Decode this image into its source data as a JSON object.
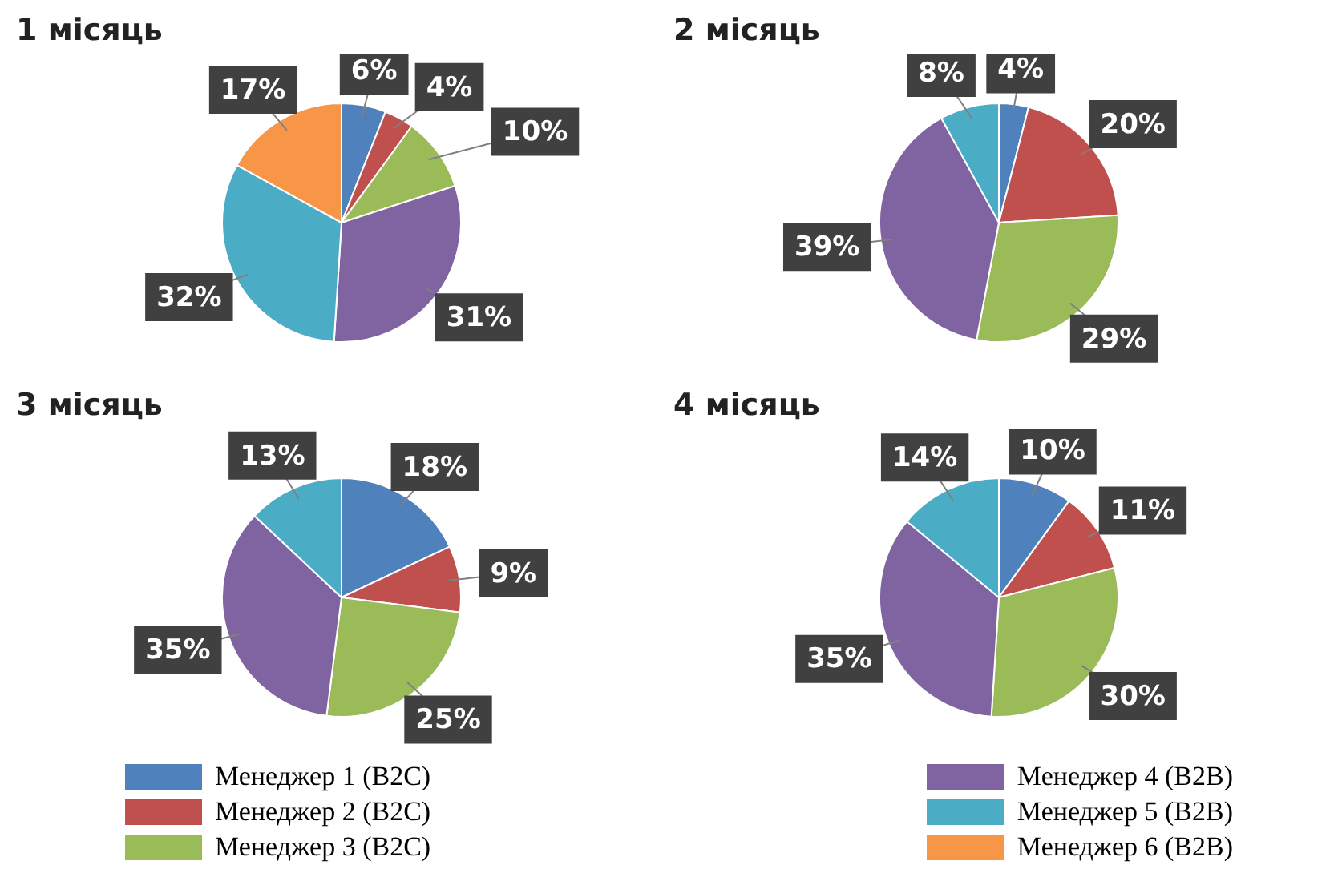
{
  "chart_data": [
    {
      "type": "pie",
      "title": "1 місяць",
      "categories": [
        "Менеджер 1 (B2C)",
        "Менеджер 2 (B2C)",
        "Менеджер 3 (B2C)",
        "Менеджер 4 (B2B)",
        "Менеджер 5 (B2B)",
        "Менеджер 6 (B2B)"
      ],
      "values": [
        6,
        4,
        10,
        31,
        32,
        17
      ],
      "colors": [
        "#4f81bd",
        "#c0504d",
        "#9bbb59",
        "#8064a2",
        "#4bacc6",
        "#f79646"
      ],
      "value_labels": [
        "6%",
        "4%",
        "10%",
        "31%",
        "32%",
        "17%"
      ],
      "legend": "bottom"
    },
    {
      "type": "pie",
      "title": "2 місяць",
      "categories": [
        null,
        null,
        null,
        null,
        null
      ],
      "values": [
        4,
        20,
        29,
        39,
        8
      ],
      "colors": [
        "#4f81bd",
        "#c0504d",
        "#9bbb59",
        "#8064a2",
        "#4bacc6"
      ],
      "value_labels": [
        "4%",
        "20%",
        "29%",
        "39%",
        "8%"
      ]
    },
    {
      "type": "pie",
      "title": "3 місяць",
      "categories": [
        null,
        null,
        null,
        null,
        null
      ],
      "values": [
        18,
        9,
        25,
        35,
        13
      ],
      "colors": [
        "#4f81bd",
        "#c0504d",
        "#9bbb59",
        "#8064a2",
        "#4bacc6"
      ],
      "value_labels": [
        "18%",
        "9%",
        "25%",
        "35%",
        "13%"
      ]
    },
    {
      "type": "pie",
      "title": "4 місяць",
      "categories": [
        null,
        null,
        null,
        null,
        null
      ],
      "values": [
        10,
        11,
        30,
        35,
        14
      ],
      "colors": [
        "#4f81bd",
        "#c0504d",
        "#9bbb59",
        "#8064a2",
        "#4bacc6"
      ],
      "value_labels": [
        "10%",
        "11%",
        "30%",
        "35%",
        "14%"
      ]
    }
  ]
}
